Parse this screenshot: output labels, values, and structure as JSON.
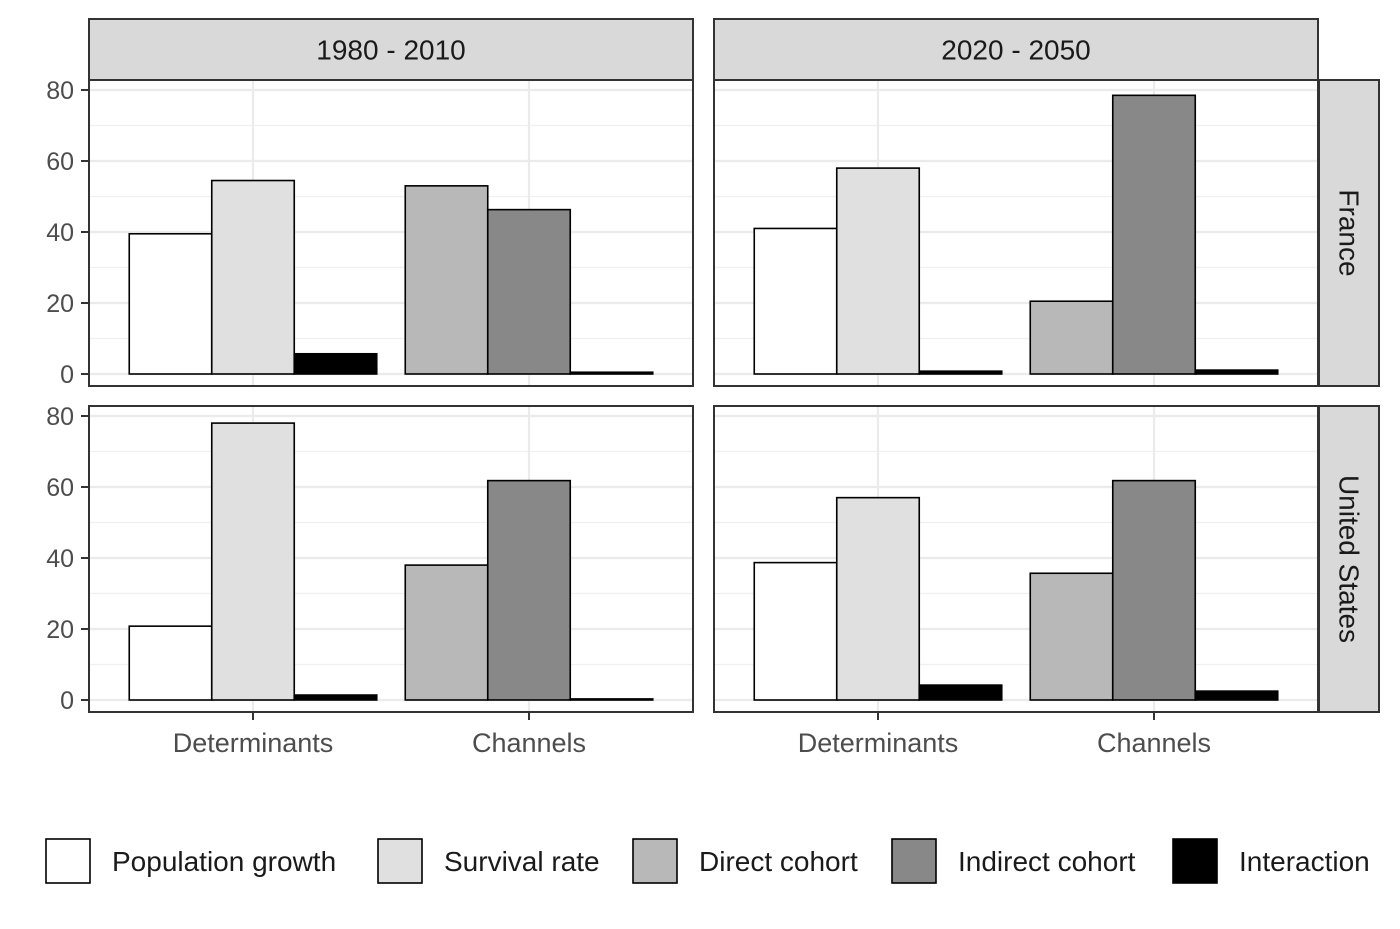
{
  "chart_data": {
    "type": "bar",
    "facets": {
      "columns": [
        "1980 - 2010",
        "2020 - 2050"
      ],
      "rows": [
        "France",
        "United States"
      ]
    },
    "categories": [
      "Determinants",
      "Channels"
    ],
    "category_groups": {
      "Determinants": [
        "Population growth",
        "Survival rate",
        "Interaction"
      ],
      "Channels": [
        "Direct cohort",
        "Indirect cohort",
        "Interaction"
      ]
    },
    "legend": {
      "placement": "bottom",
      "entries": [
        {
          "name": "Population growth",
          "color": "#ffffff"
        },
        {
          "name": "Survival rate",
          "color": "#e0e0e0"
        },
        {
          "name": "Direct cohort",
          "color": "#b8b8b8"
        },
        {
          "name": "Indirect cohort",
          "color": "#888888"
        },
        {
          "name": "Interaction",
          "color": "#000000"
        }
      ]
    },
    "ylim": [
      0,
      80
    ],
    "yticks": [
      "0",
      "20",
      "40",
      "60",
      "80"
    ],
    "grid": true,
    "panels": [
      {
        "column": "1980 - 2010",
        "row": "France",
        "bars": {
          "Determinants": [
            39.5,
            54.5,
            5.7
          ],
          "Channels": [
            53.0,
            46.3,
            0.5
          ]
        }
      },
      {
        "column": "2020 - 2050",
        "row": "France",
        "bars": {
          "Determinants": [
            41.0,
            58.0,
            0.8
          ],
          "Channels": [
            20.5,
            78.5,
            1.1
          ]
        }
      },
      {
        "column": "1980 - 2010",
        "row": "United States",
        "bars": {
          "Determinants": [
            20.8,
            78.0,
            1.4
          ],
          "Channels": [
            38.0,
            61.8,
            0.3
          ]
        }
      },
      {
        "column": "2020 - 2050",
        "row": "United States",
        "bars": {
          "Determinants": [
            38.7,
            57.0,
            4.2
          ],
          "Channels": [
            35.7,
            61.8,
            2.5
          ]
        }
      }
    ]
  }
}
